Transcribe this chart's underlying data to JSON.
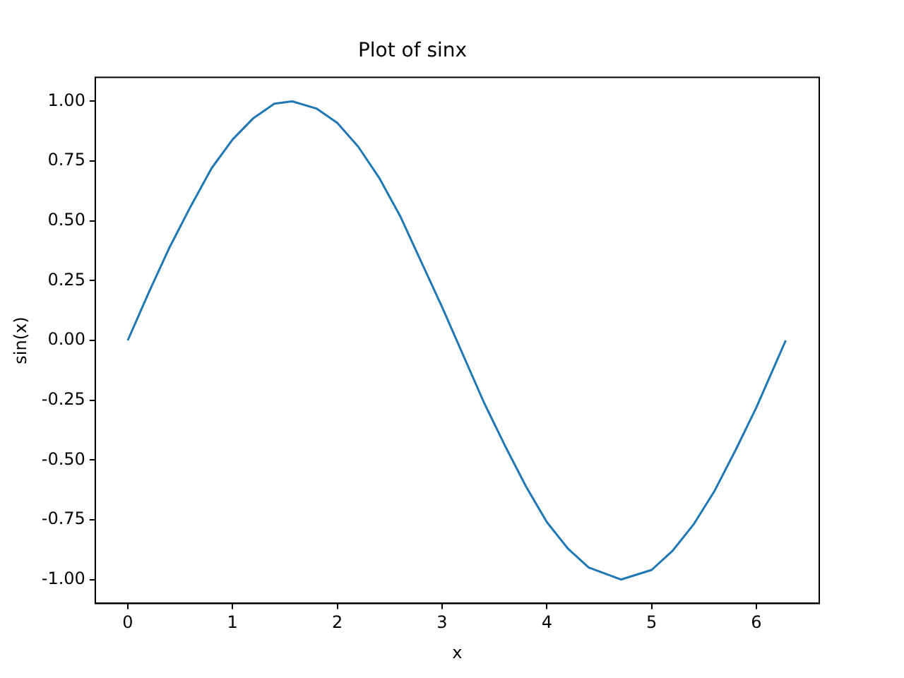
{
  "chart_data": {
    "type": "line",
    "title": "Plot of sinx",
    "xlabel": "x",
    "ylabel": "sin(x)",
    "x": [
      0,
      0.2,
      0.4,
      0.6,
      0.8,
      1.0,
      1.2,
      1.4,
      1.57,
      1.8,
      2.0,
      2.2,
      2.4,
      2.6,
      2.8,
      3.0,
      3.2,
      3.4,
      3.6,
      3.8,
      4.0,
      4.2,
      4.4,
      4.71,
      5.0,
      5.2,
      5.4,
      5.6,
      5.8,
      6.0,
      6.28
    ],
    "series": [
      {
        "color": "#1f77b4",
        "values": [
          0,
          0.2,
          0.39,
          0.56,
          0.72,
          0.84,
          0.93,
          0.99,
          1.0,
          0.97,
          0.91,
          0.81,
          0.68,
          0.52,
          0.33,
          0.14,
          -0.06,
          -0.26,
          -0.44,
          -0.61,
          -0.76,
          -0.87,
          -0.95,
          -1.0,
          -0.96,
          -0.88,
          -0.77,
          -0.63,
          -0.46,
          -0.28,
          0
        ]
      }
    ],
    "xlim": [
      -0.31,
      6.6
    ],
    "ylim": [
      -1.1,
      1.1
    ],
    "xticks": [
      0,
      1,
      2,
      3,
      4,
      5,
      6
    ],
    "yticks": [
      {
        "value": -1,
        "label": "-1.00"
      },
      {
        "value": -0.75,
        "label": "-0.75"
      },
      {
        "value": -0.5,
        "label": "-0.50"
      },
      {
        "value": -0.25,
        "label": "-0.25"
      },
      {
        "value": 0,
        "label": "0.00"
      },
      {
        "value": 0.25,
        "label": "0.25"
      },
      {
        "value": 0.5,
        "label": "0.50"
      },
      {
        "value": 0.75,
        "label": "0.75"
      },
      {
        "value": 1,
        "label": "1.00"
      }
    ],
    "grid": false
  }
}
